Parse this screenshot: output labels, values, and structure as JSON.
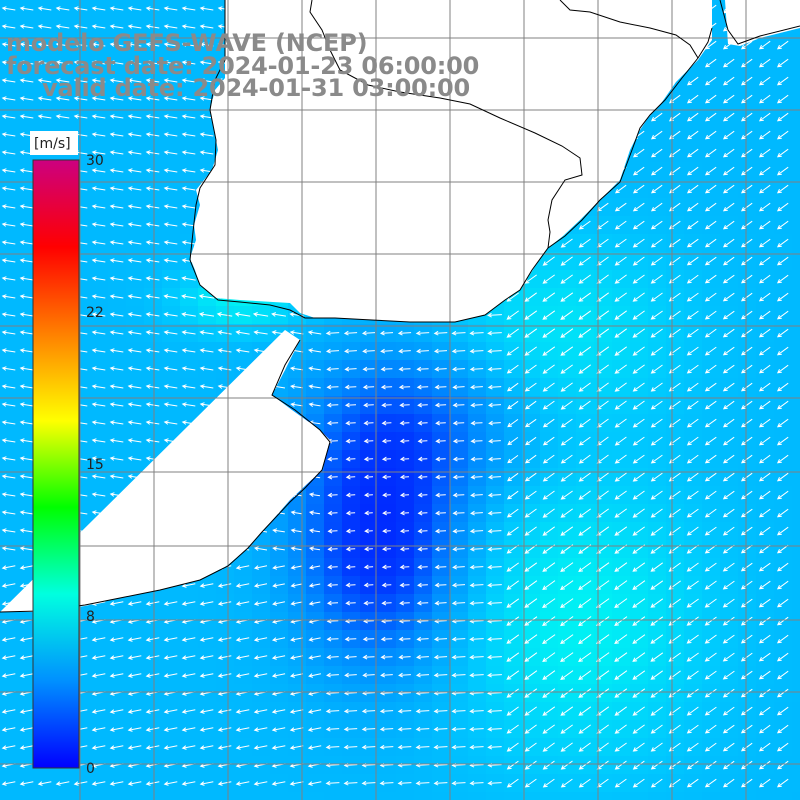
{
  "header": {
    "model_line": "modelo GEFS-WAVE (NCEP)",
    "forecast_line": "forecast date: 2024-01-23 06:00:00",
    "valid_line": "valid date: 2024-01-31 03:00:00"
  },
  "colorbar": {
    "units": "[m/s]",
    "ticks": [
      "30",
      "22",
      "15",
      "8",
      "0"
    ],
    "tick_values": [
      30,
      22,
      15,
      8,
      0
    ],
    "range": [
      0,
      30
    ],
    "colors": [
      "#0000ff",
      "#0090ff",
      "#00ffe0",
      "#00ff00",
      "#ffff00",
      "#ff8000",
      "#ff0000",
      "#cc0080"
    ]
  },
  "map": {
    "field": "wind speed with direction arrows",
    "land_color": "#ffffff",
    "grid_color": "#808080",
    "coast_color": "#000000",
    "arrow_color": "#ffffff"
  }
}
